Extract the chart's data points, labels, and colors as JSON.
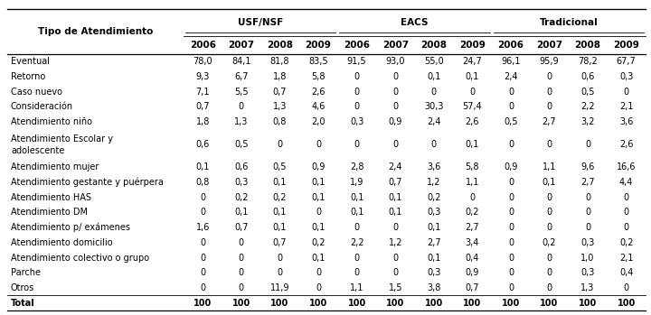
{
  "rows": [
    [
      "Eventual",
      "78,0",
      "84,1",
      "81,8",
      "83,5",
      "91,5",
      "93,0",
      "55,0",
      "24,7",
      "96,1",
      "95,9",
      "78,2",
      "67,7"
    ],
    [
      "Retorno",
      "9,3",
      "6,7",
      "1,8",
      "5,8",
      "0",
      "0",
      "0,1",
      "0,1",
      "2,4",
      "0",
      "0,6",
      "0,3"
    ],
    [
      "Caso nuevo",
      "7,1",
      "5,5",
      "0,7",
      "2,6",
      "0",
      "0",
      "0",
      "0",
      "0",
      "0",
      "0,5",
      "0"
    ],
    [
      "Consideración",
      "0,7",
      "0",
      "1,3",
      "4,6",
      "0",
      "0",
      "30,3",
      "57,4",
      "0",
      "0",
      "2,2",
      "2,1"
    ],
    [
      "Atendimiento niño",
      "1,8",
      "1,3",
      "0,8",
      "2,0",
      "0,3",
      "0,9",
      "2,4",
      "2,6",
      "0,5",
      "2,7",
      "3,2",
      "3,6"
    ],
    [
      "Atendimiento Escolar y\nadolescente",
      "0,6",
      "0,5",
      "0",
      "0",
      "0",
      "0",
      "0",
      "0,1",
      "0",
      "0",
      "0",
      "2,6"
    ],
    [
      "Atendimiento mujer",
      "0,1",
      "0,6",
      "0,5",
      "0,9",
      "2,8",
      "2,4",
      "3,6",
      "5,8",
      "0,9",
      "1,1",
      "9,6",
      "16,6"
    ],
    [
      "Atendimiento gestante y puérpera",
      "0,8",
      "0,3",
      "0,1",
      "0,1",
      "1,9",
      "0,7",
      "1,2",
      "1,1",
      "0",
      "0,1",
      "2,7",
      "4,4"
    ],
    [
      "Atendimiento HAS",
      "0",
      "0,2",
      "0,2",
      "0,1",
      "0,1",
      "0,1",
      "0,2",
      "0",
      "0",
      "0",
      "0",
      "0"
    ],
    [
      "Atendimiento DM",
      "0",
      "0,1",
      "0,1",
      "0",
      "0,1",
      "0,1",
      "0,3",
      "0,2",
      "0",
      "0",
      "0",
      "0"
    ],
    [
      "Atendimiento p/ exámenes",
      "1,6",
      "0,7",
      "0,1",
      "0,1",
      "0",
      "0",
      "0,1",
      "2,7",
      "0",
      "0",
      "0",
      "0"
    ],
    [
      "Atendimiento domicilio",
      "0",
      "0",
      "0,7",
      "0,2",
      "2,2",
      "1,2",
      "2,7",
      "3,4",
      "0",
      "0,2",
      "0,3",
      "0,2"
    ],
    [
      "Atendimiento colectivo o grupo",
      "0",
      "0",
      "0",
      "0,1",
      "0",
      "0",
      "0,1",
      "0,4",
      "0",
      "0",
      "1,0",
      "2,1"
    ],
    [
      "Parche",
      "0",
      "0",
      "0",
      "0",
      "0",
      "0",
      "0,3",
      "0,9",
      "0",
      "0",
      "0,3",
      "0,4"
    ],
    [
      "Otros",
      "0",
      "0",
      "11,9",
      "0",
      "1,1",
      "1,5",
      "3,8",
      "0,7",
      "0",
      "0",
      "1,3",
      "0"
    ],
    [
      "Total",
      "100",
      "100",
      "100",
      "100",
      "100",
      "100",
      "100",
      "100",
      "100",
      "100",
      "100",
      "100"
    ]
  ],
  "group_labels": [
    "USF/NSF",
    "EACS",
    "Tradicional"
  ],
  "group_col_ranges": [
    [
      1,
      4
    ],
    [
      5,
      8
    ],
    [
      9,
      12
    ]
  ],
  "years": [
    "2006",
    "2007",
    "2008",
    "2009",
    "2006",
    "2007",
    "2008",
    "2009",
    "2006",
    "2007",
    "2008",
    "2009"
  ],
  "header_label": "Tipo de Atendimiento",
  "bg_color": "#ffffff",
  "font_size": 7.0,
  "header_font_size": 7.5
}
